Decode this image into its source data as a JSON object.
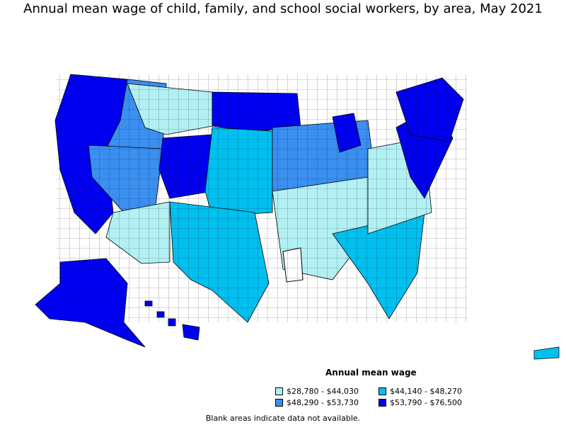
{
  "title": "Annual mean wage of child, family, and school social workers, by area, May 2021",
  "legend": {
    "title": "Annual mean wage",
    "items": [
      {
        "label": "$28,780 - $44,030",
        "color": "#b2f0f4"
      },
      {
        "label": "$44,140 - $48,270",
        "color": "#00c0f0"
      },
      {
        "label": "$48,290 - $53,730",
        "color": "#3a8ff0"
      },
      {
        "label": "$53,790 - $76,500",
        "color": "#0000f0"
      }
    ]
  },
  "note": "Blank areas indicate data not available.",
  "colors": {
    "border": "#000000",
    "blank": "#ffffff"
  }
}
